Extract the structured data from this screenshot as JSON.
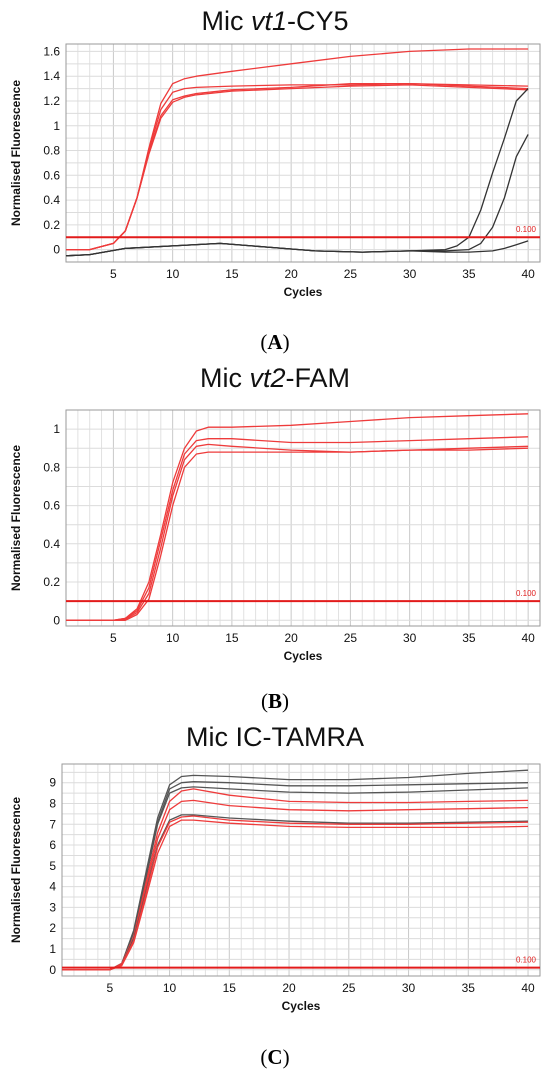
{
  "chart_data": [
    {
      "type": "line",
      "panel": "A",
      "title_parts": [
        "Mic ",
        "vt1",
        "-CY5"
      ],
      "xlabel": "Cycles",
      "ylabel": "Normalised Fluorescence",
      "xlim": [
        1,
        41
      ],
      "ylim": [
        -0.1,
        1.66
      ],
      "xticks": [
        5,
        10,
        15,
        20,
        25,
        30,
        35,
        40
      ],
      "yticks": [
        0,
        0.2,
        0.4,
        0.6,
        0.8,
        1,
        1.2,
        1.4,
        1.6
      ],
      "ytick_labels": [
        "0",
        "0.2",
        "0.4",
        "0.6",
        "0.8",
        "1",
        "1.2",
        "1.4",
        "1.6"
      ],
      "threshold": 0.1,
      "threshold_label": "0.100",
      "grid": true,
      "series": [
        {
          "color": "#ee3b3b",
          "x": [
            1,
            3,
            5,
            6,
            7,
            8,
            9,
            10,
            11,
            12,
            15,
            20,
            25,
            30,
            35,
            40
          ],
          "values": [
            0,
            0,
            0.05,
            0.15,
            0.42,
            0.82,
            1.18,
            1.34,
            1.38,
            1.4,
            1.44,
            1.5,
            1.56,
            1.6,
            1.62,
            1.62
          ]
        },
        {
          "color": "#ee3b3b",
          "x": [
            1,
            3,
            5,
            6,
            7,
            8,
            9,
            10,
            11,
            12,
            15,
            20,
            25,
            30,
            35,
            40
          ],
          "values": [
            0,
            0,
            0.05,
            0.15,
            0.42,
            0.8,
            1.13,
            1.27,
            1.3,
            1.31,
            1.32,
            1.33,
            1.33,
            1.34,
            1.33,
            1.32
          ]
        },
        {
          "color": "#ee3b3b",
          "x": [
            1,
            3,
            5,
            6,
            7,
            8,
            9,
            10,
            11,
            12,
            15,
            20,
            25,
            30,
            35,
            40
          ],
          "values": [
            0,
            0,
            0.05,
            0.15,
            0.42,
            0.78,
            1.08,
            1.21,
            1.24,
            1.26,
            1.29,
            1.31,
            1.34,
            1.34,
            1.32,
            1.3
          ]
        },
        {
          "color": "#ee3b3b",
          "x": [
            1,
            3,
            5,
            6,
            7,
            8,
            9,
            10,
            11,
            12,
            15,
            20,
            25,
            30,
            35,
            40
          ],
          "values": [
            0,
            0,
            0.05,
            0.15,
            0.42,
            0.77,
            1.06,
            1.19,
            1.23,
            1.25,
            1.28,
            1.3,
            1.32,
            1.33,
            1.31,
            1.29
          ]
        },
        {
          "color": "#333333",
          "x": [
            1,
            3,
            6,
            10,
            14,
            18,
            22,
            26,
            30,
            33,
            34,
            35,
            36,
            37,
            38,
            39,
            40
          ],
          "values": [
            -0.05,
            -0.04,
            0.01,
            0.03,
            0.05,
            0.02,
            -0.01,
            -0.02,
            -0.01,
            0,
            0.03,
            0.1,
            0.32,
            0.62,
            0.9,
            1.2,
            1.3
          ]
        },
        {
          "color": "#333333",
          "x": [
            1,
            3,
            6,
            10,
            14,
            18,
            22,
            26,
            30,
            33,
            35,
            36,
            37,
            38,
            39,
            40
          ],
          "values": [
            -0.05,
            -0.04,
            0.01,
            0.03,
            0.05,
            0.02,
            -0.01,
            -0.02,
            -0.01,
            -0.01,
            0,
            0.05,
            0.18,
            0.42,
            0.75,
            0.93
          ]
        },
        {
          "color": "#333333",
          "x": [
            1,
            3,
            6,
            10,
            14,
            18,
            22,
            26,
            30,
            33,
            35,
            37,
            38,
            39,
            40
          ],
          "values": [
            -0.05,
            -0.04,
            0.01,
            0.03,
            0.05,
            0.02,
            -0.01,
            -0.02,
            -0.01,
            -0.02,
            -0.02,
            -0.01,
            0.01,
            0.04,
            0.07
          ]
        }
      ]
    },
    {
      "type": "line",
      "panel": "B",
      "title_parts": [
        "Mic ",
        "vt2",
        "-FAM"
      ],
      "xlabel": "Cycles",
      "ylabel": "Normalised Fluorescence",
      "xlim": [
        1,
        41
      ],
      "ylim": [
        -0.03,
        1.1
      ],
      "xticks": [
        5,
        10,
        15,
        20,
        25,
        30,
        35,
        40
      ],
      "yticks": [
        0,
        0.2,
        0.4,
        0.6,
        0.8,
        1
      ],
      "ytick_labels": [
        "0",
        "0.2",
        "0.4",
        "0.6",
        "0.8",
        "1"
      ],
      "threshold": 0.1,
      "threshold_label": "0.100",
      "grid": true,
      "series": [
        {
          "color": "#ee3b3b",
          "x": [
            1,
            5,
            6,
            7,
            8,
            9,
            10,
            11,
            12,
            13,
            15,
            20,
            25,
            30,
            35,
            40
          ],
          "values": [
            0,
            0,
            0.01,
            0.06,
            0.2,
            0.45,
            0.72,
            0.9,
            0.99,
            1.01,
            1.01,
            1.02,
            1.04,
            1.06,
            1.07,
            1.08
          ]
        },
        {
          "color": "#ee3b3b",
          "x": [
            1,
            5,
            6,
            7,
            8,
            9,
            10,
            11,
            12,
            13,
            15,
            20,
            25,
            30,
            35,
            40
          ],
          "values": [
            0,
            0,
            0.01,
            0.05,
            0.17,
            0.42,
            0.68,
            0.87,
            0.94,
            0.95,
            0.95,
            0.93,
            0.93,
            0.94,
            0.95,
            0.96
          ]
        },
        {
          "color": "#ee3b3b",
          "x": [
            1,
            5,
            6,
            7,
            8,
            9,
            10,
            11,
            12,
            13,
            15,
            20,
            25,
            30,
            35,
            40
          ],
          "values": [
            0,
            0,
            0.005,
            0.04,
            0.14,
            0.38,
            0.65,
            0.84,
            0.91,
            0.92,
            0.91,
            0.89,
            0.88,
            0.89,
            0.9,
            0.91
          ]
        },
        {
          "color": "#ee3b3b",
          "x": [
            1,
            5,
            6,
            7,
            8,
            9,
            10,
            11,
            12,
            13,
            15,
            20,
            25,
            30,
            35,
            40
          ],
          "values": [
            0,
            0,
            0,
            0.03,
            0.11,
            0.34,
            0.6,
            0.8,
            0.87,
            0.88,
            0.88,
            0.88,
            0.88,
            0.89,
            0.89,
            0.9
          ]
        }
      ]
    },
    {
      "type": "line",
      "panel": "C",
      "title_parts": [
        "Mic IC-TAMRA",
        "",
        ""
      ],
      "xlabel": "Cycles",
      "ylabel": "Normalised Fluorescence",
      "xlim": [
        1,
        41
      ],
      "ylim": [
        -0.3,
        9.9
      ],
      "xticks": [
        5,
        10,
        15,
        20,
        25,
        30,
        35,
        40
      ],
      "yticks": [
        0,
        1,
        2,
        3,
        4,
        5,
        6,
        7,
        8,
        9
      ],
      "ytick_labels": [
        "0",
        "1",
        "2",
        "3",
        "4",
        "5",
        "6",
        "7",
        "8",
        "9"
      ],
      "threshold": 0.1,
      "threshold_label": "0.100",
      "grid": true,
      "series": [
        {
          "color": "#555555",
          "x": [
            1,
            5,
            6,
            7,
            8,
            9,
            10,
            11,
            12,
            15,
            20,
            25,
            30,
            35,
            40
          ],
          "values": [
            0,
            0,
            0.3,
            1.9,
            4.6,
            7.3,
            8.9,
            9.3,
            9.35,
            9.3,
            9.15,
            9.15,
            9.25,
            9.45,
            9.6
          ]
        },
        {
          "color": "#555555",
          "x": [
            1,
            5,
            6,
            7,
            8,
            9,
            10,
            11,
            12,
            15,
            20,
            25,
            30,
            35,
            40
          ],
          "values": [
            0,
            0,
            0.3,
            1.8,
            4.4,
            7.1,
            8.7,
            9.0,
            9.05,
            9.0,
            8.85,
            8.85,
            8.9,
            8.95,
            9.0
          ]
        },
        {
          "color": "#555555",
          "x": [
            1,
            5,
            6,
            7,
            8,
            9,
            10,
            11,
            12,
            15,
            20,
            25,
            30,
            35,
            40
          ],
          "values": [
            0,
            0,
            0.3,
            1.8,
            4.3,
            7.0,
            8.5,
            8.75,
            8.8,
            8.7,
            8.55,
            8.5,
            8.55,
            8.65,
            8.75
          ]
        },
        {
          "color": "#ee3b3b",
          "x": [
            1,
            5,
            6,
            7,
            8,
            9,
            10,
            11,
            12,
            15,
            20,
            25,
            30,
            35,
            40
          ],
          "values": [
            0,
            0,
            0.3,
            1.6,
            4.1,
            6.6,
            8.1,
            8.6,
            8.7,
            8.4,
            8.1,
            8.05,
            8.05,
            8.1,
            8.15
          ]
        },
        {
          "color": "#ee3b3b",
          "x": [
            1,
            5,
            6,
            7,
            8,
            9,
            10,
            11,
            12,
            15,
            20,
            25,
            30,
            35,
            40
          ],
          "values": [
            0,
            0,
            0.25,
            1.5,
            3.9,
            6.3,
            7.7,
            8.1,
            8.15,
            7.9,
            7.7,
            7.65,
            7.7,
            7.75,
            7.8
          ]
        },
        {
          "color": "#555555",
          "x": [
            1,
            5,
            6,
            7,
            8,
            9,
            10,
            11,
            12,
            15,
            20,
            25,
            30,
            35,
            40
          ],
          "values": [
            0,
            0,
            0.25,
            1.5,
            3.7,
            6.0,
            7.2,
            7.45,
            7.45,
            7.3,
            7.15,
            7.05,
            7.05,
            7.1,
            7.15
          ]
        },
        {
          "color": "#ee3b3b",
          "x": [
            1,
            5,
            6,
            7,
            8,
            9,
            10,
            11,
            12,
            15,
            20,
            25,
            30,
            35,
            40
          ],
          "values": [
            0,
            0,
            0.25,
            1.4,
            3.6,
            5.9,
            7.1,
            7.35,
            7.4,
            7.2,
            7.05,
            7.0,
            7.0,
            7.05,
            7.1
          ]
        },
        {
          "color": "#ee3b3b",
          "x": [
            1,
            5,
            6,
            7,
            8,
            9,
            10,
            11,
            12,
            15,
            20,
            25,
            30,
            35,
            40
          ],
          "values": [
            0,
            0,
            0.2,
            1.3,
            3.4,
            5.6,
            6.9,
            7.2,
            7.2,
            7.05,
            6.9,
            6.85,
            6.85,
            6.85,
            6.9
          ]
        }
      ]
    }
  ]
}
